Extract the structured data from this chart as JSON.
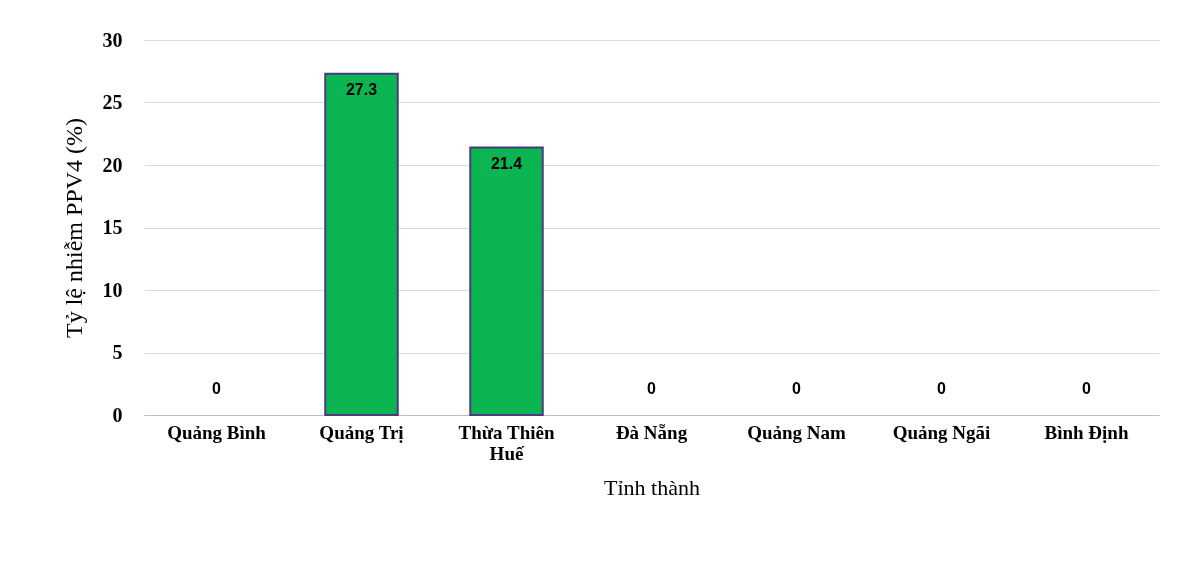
{
  "chart_data": {
    "type": "bar",
    "xlabel": "Tỉnh thành",
    "ylabel": "Tỷ lệ nhiễm PPV4 (%)",
    "categories": [
      "Quảng Bình",
      "Quảng Trị",
      "Thừa Thiên Huế",
      "Đà Nẵng",
      "Quảng Nam",
      "Quảng Ngãi",
      "Bình Định"
    ],
    "values": [
      0,
      27.3,
      21.4,
      0,
      0,
      0,
      0
    ],
    "color": "#0bb552",
    "ylim": [
      0,
      30
    ],
    "yticks": [
      0,
      5,
      10,
      15,
      20,
      25,
      30
    ],
    "grid": "y",
    "data_labels": true
  }
}
